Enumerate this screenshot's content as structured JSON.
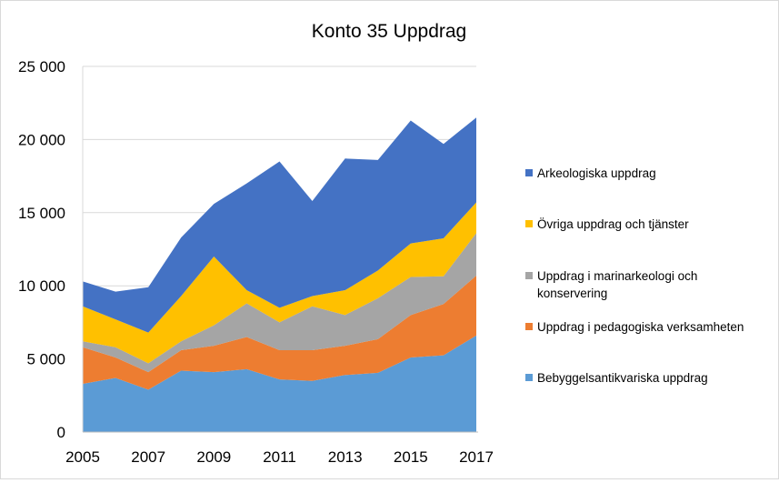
{
  "chart_data": {
    "type": "area",
    "stacked": true,
    "title": "Konto 35 Uppdrag",
    "xlabel": "",
    "ylabel": "",
    "x": [
      2005,
      2006,
      2007,
      2008,
      2009,
      2010,
      2011,
      2012,
      2013,
      2014,
      2015,
      2016,
      2017
    ],
    "x_tick_labels": [
      "2005",
      "2007",
      "2009",
      "2011",
      "2013",
      "2015",
      "2017"
    ],
    "x_tick_values": [
      2005,
      2007,
      2009,
      2011,
      2013,
      2015,
      2017
    ],
    "ylim": [
      0,
      25000
    ],
    "y_ticks": [
      0,
      5000,
      10000,
      15000,
      20000,
      25000
    ],
    "y_tick_labels": [
      "0",
      "5 000",
      "10 000",
      "15 000",
      "20 000",
      "25 000"
    ],
    "grid": true,
    "legend_position": "right",
    "series": [
      {
        "name": "Bebyggelsantikvariska uppdrag",
        "color": "#5b9bd5",
        "values": [
          3300,
          3700,
          2900,
          4200,
          4100,
          4300,
          3600,
          3500,
          3900,
          4050,
          5100,
          5250,
          6600
        ]
      },
      {
        "name": "Uppdrag i pedagogiska verksamheten",
        "color": "#ed7d31",
        "values": [
          2500,
          1400,
          1200,
          1400,
          1800,
          2200,
          2000,
          2100,
          2000,
          2300,
          2900,
          3500,
          4100
        ]
      },
      {
        "name": "Uppdrag i marinarkeologi och konservering",
        "color": "#a5a5a5",
        "values": [
          400,
          700,
          600,
          600,
          1400,
          2300,
          1900,
          3000,
          2100,
          2800,
          2600,
          1900,
          2900
        ]
      },
      {
        "name": "Övriga uppdrag och tjänster",
        "color": "#ffc000",
        "values": [
          2400,
          1900,
          2100,
          3100,
          4700,
          900,
          1000,
          700,
          1700,
          1900,
          2300,
          2600,
          2100
        ]
      },
      {
        "name": "Arkeologiska uppdrag",
        "color": "#4472c4",
        "values": [
          1700,
          1900,
          3100,
          4000,
          3600,
          7300,
          10000,
          6500,
          9000,
          7550,
          8400,
          6450,
          5800
        ]
      }
    ],
    "legend_order": [
      "Arkeologiska uppdrag",
      "Övriga uppdrag och tjänster",
      "Uppdrag i marinarkeologi och konservering",
      "Uppdrag i pedagogiska verksamheten",
      "Bebyggelsantikvariska uppdrag"
    ]
  }
}
